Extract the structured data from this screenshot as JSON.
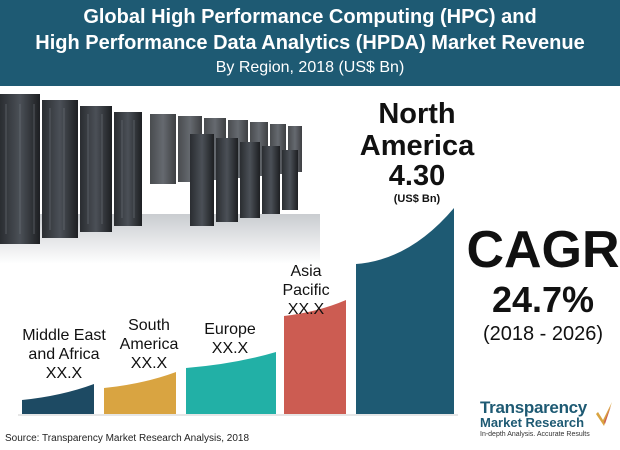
{
  "header": {
    "title_line1": "Global High Performance Computing (HPC) and",
    "title_line2": "High Performance Data Analytics (HPDA) Market Revenue",
    "subtitle": "By Region, 2018 (US$ Bn)"
  },
  "chart_data": {
    "type": "bar",
    "title": "Global High Performance Computing (HPC) and High Performance Data Analytics (HPDA) Market Revenue",
    "subtitle": "By Region, 2018 (US$ Bn)",
    "categories": [
      "Middle East and Africa",
      "South America",
      "Europe",
      "Asia Pacific",
      "North America"
    ],
    "value_labels": [
      "XX.X",
      "XX.X",
      "XX.X",
      "XX.X",
      "4.30"
    ],
    "values": [
      null,
      null,
      null,
      null,
      4.3
    ],
    "colors": [
      "#1d4a63",
      "#d9a441",
      "#22b0a6",
      "#cc5c52",
      "#1e5a73"
    ],
    "unit": "(US$ Bn)"
  },
  "labels": {
    "mea_line1": "Middle East",
    "mea_line2": "and Africa",
    "mea_value": "XX.X",
    "sa_line1": "South",
    "sa_line2": "America",
    "sa_value": "XX.X",
    "eu_line1": "Europe",
    "eu_value": "XX.X",
    "ap_line1": "Asia",
    "ap_line2": "Pacific",
    "ap_value": "XX.X",
    "na_line1": "North",
    "na_line2": "America",
    "na_value": "4.30",
    "na_unit": "(US$ Bn)"
  },
  "cagr": {
    "title": "CAGR",
    "value": "24.7%",
    "period": "(2018 - 2026)"
  },
  "brand": {
    "name_line1": "Transparency",
    "name_line2": "Market Research",
    "tagline": "In-depth Analysis. Accurate Results"
  },
  "source": "Source: Transparency Market Research Analysis, 2018"
}
